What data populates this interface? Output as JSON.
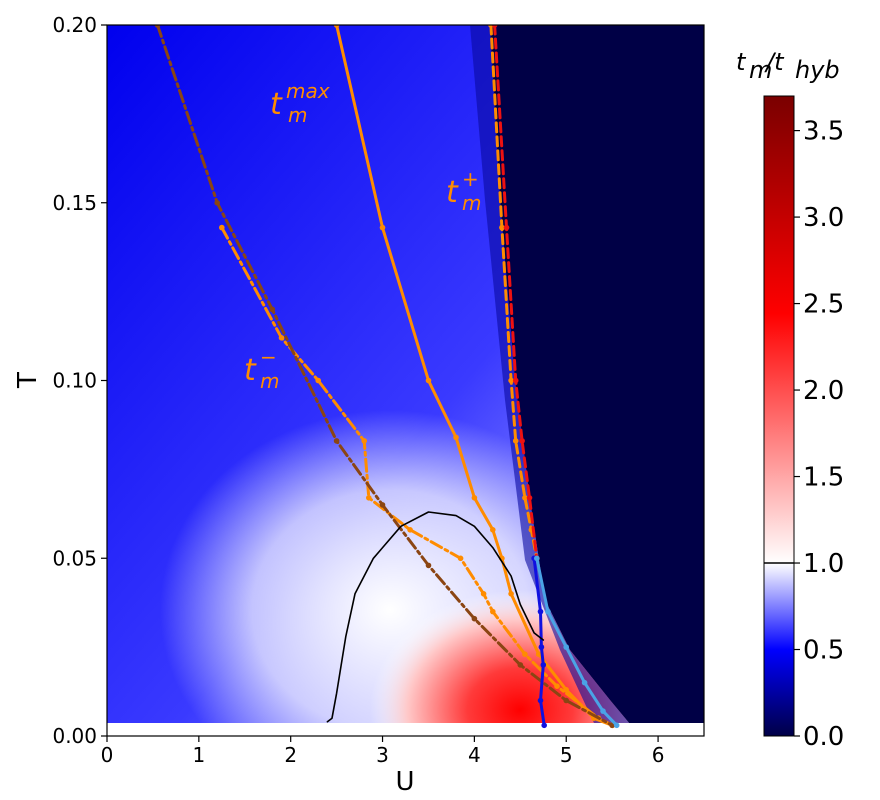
{
  "chart_data": {
    "type": "heatmap",
    "title": "",
    "xlabel": "U",
    "ylabel": "T",
    "xlim": [
      0,
      6.5
    ],
    "ylim": [
      0,
      0.2
    ],
    "x_ticks": [
      "0",
      "1",
      "2",
      "3",
      "4",
      "5",
      "6"
    ],
    "y_ticks": [
      "0.00",
      "0.05",
      "0.10",
      "0.15",
      "0.20"
    ],
    "colorbar": {
      "label_main": "t",
      "label_sub1": "m",
      "label_slash": "/t",
      "label_sub2": "hyb",
      "range": [
        0,
        3.7
      ],
      "ticks": [
        "0.0",
        "0.5",
        "1.0",
        "1.5",
        "2.0",
        "2.5",
        "3.0",
        "3.5"
      ],
      "marked_level": 1.0,
      "colors": [
        "#000046",
        "#0000ff",
        "#ffffff",
        "#ff0000",
        "#7a0000"
      ]
    },
    "annotations": [
      {
        "base": "t",
        "sub": "m",
        "sup": "max",
        "color": "#ff8c00"
      },
      {
        "base": "t",
        "sub": "m",
        "sup": "+",
        "color": "#ff8c00"
      },
      {
        "base": "t",
        "sub": "m",
        "sup": "−",
        "color": "#ff8c00"
      }
    ],
    "series": [
      {
        "key": "tmax",
        "color": "#ff8c00",
        "style": "solid",
        "points": [
          [
            2.5,
            0.2
          ],
          [
            3.0,
            0.143
          ],
          [
            3.5,
            0.1
          ],
          [
            3.8,
            0.084
          ],
          [
            4.0,
            0.067
          ],
          [
            4.2,
            0.058
          ],
          [
            4.3,
            0.05
          ],
          [
            4.4,
            0.04
          ],
          [
            4.7,
            0.023
          ],
          [
            5.0,
            0.013
          ],
          [
            5.3,
            0.005
          ],
          [
            5.5,
            0.003
          ]
        ]
      },
      {
        "key": "tplus_orange",
        "color": "#ff8c00",
        "style": "dashed",
        "points": [
          [
            4.18,
            0.2
          ],
          [
            4.3,
            0.143
          ],
          [
            4.4,
            0.1
          ],
          [
            4.45,
            0.083
          ],
          [
            4.55,
            0.067
          ],
          [
            4.62,
            0.058
          ],
          [
            4.68,
            0.05
          ]
        ]
      },
      {
        "key": "tplus_red",
        "color": "#ee1111",
        "style": "dashed",
        "points": [
          [
            4.22,
            0.2
          ],
          [
            4.35,
            0.143
          ],
          [
            4.45,
            0.1
          ],
          [
            4.52,
            0.083
          ],
          [
            4.6,
            0.067
          ],
          [
            4.68,
            0.05
          ]
        ]
      },
      {
        "key": "tminus_orange",
        "color": "#ff8c00",
        "style": "dashdot",
        "points": [
          [
            1.25,
            0.143
          ],
          [
            1.9,
            0.112
          ],
          [
            2.3,
            0.1
          ],
          [
            2.8,
            0.083
          ],
          [
            2.85,
            0.067
          ],
          [
            3.3,
            0.058
          ],
          [
            3.85,
            0.05
          ],
          [
            4.1,
            0.04
          ],
          [
            4.2,
            0.035
          ],
          [
            4.55,
            0.023
          ],
          [
            4.9,
            0.014
          ],
          [
            5.35,
            0.005
          ],
          [
            5.5,
            0.003
          ]
        ]
      },
      {
        "key": "tminus_brown",
        "color": "#8b4513",
        "style": "dashdot",
        "points": [
          [
            0.55,
            0.2
          ],
          [
            1.2,
            0.15
          ],
          [
            1.8,
            0.12
          ],
          [
            2.5,
            0.083
          ],
          [
            3.0,
            0.065
          ],
          [
            3.5,
            0.048
          ],
          [
            4.0,
            0.033
          ],
          [
            4.5,
            0.02
          ],
          [
            5.0,
            0.01
          ],
          [
            5.5,
            0.003
          ]
        ]
      },
      {
        "key": "tplus_blue",
        "color": "#1010e0",
        "style": "solid",
        "points": [
          [
            4.65,
            0.05
          ],
          [
            4.72,
            0.035
          ],
          [
            4.73,
            0.025
          ],
          [
            4.75,
            0.02
          ],
          [
            4.72,
            0.01
          ],
          [
            4.76,
            0.003
          ]
        ]
      },
      {
        "key": "boundary_lightblue",
        "color": "#4aa3e6",
        "style": "solid",
        "points": [
          [
            4.68,
            0.05
          ],
          [
            4.8,
            0.035
          ],
          [
            5.0,
            0.025
          ],
          [
            5.2,
            0.015
          ],
          [
            5.4,
            0.007
          ],
          [
            5.55,
            0.003
          ]
        ]
      },
      {
        "key": "contour_1",
        "color": "#000000",
        "style": "solid",
        "points": [
          [
            2.4,
            0.004
          ],
          [
            2.45,
            0.005
          ],
          [
            2.5,
            0.012
          ],
          [
            2.6,
            0.028
          ],
          [
            2.7,
            0.04
          ],
          [
            2.9,
            0.05
          ],
          [
            3.2,
            0.059
          ],
          [
            3.5,
            0.063
          ],
          [
            3.8,
            0.062
          ],
          [
            4.0,
            0.059
          ],
          [
            4.2,
            0.053
          ],
          [
            4.4,
            0.045
          ],
          [
            4.5,
            0.037
          ],
          [
            4.65,
            0.029
          ],
          [
            4.75,
            0.027
          ]
        ]
      }
    ]
  }
}
